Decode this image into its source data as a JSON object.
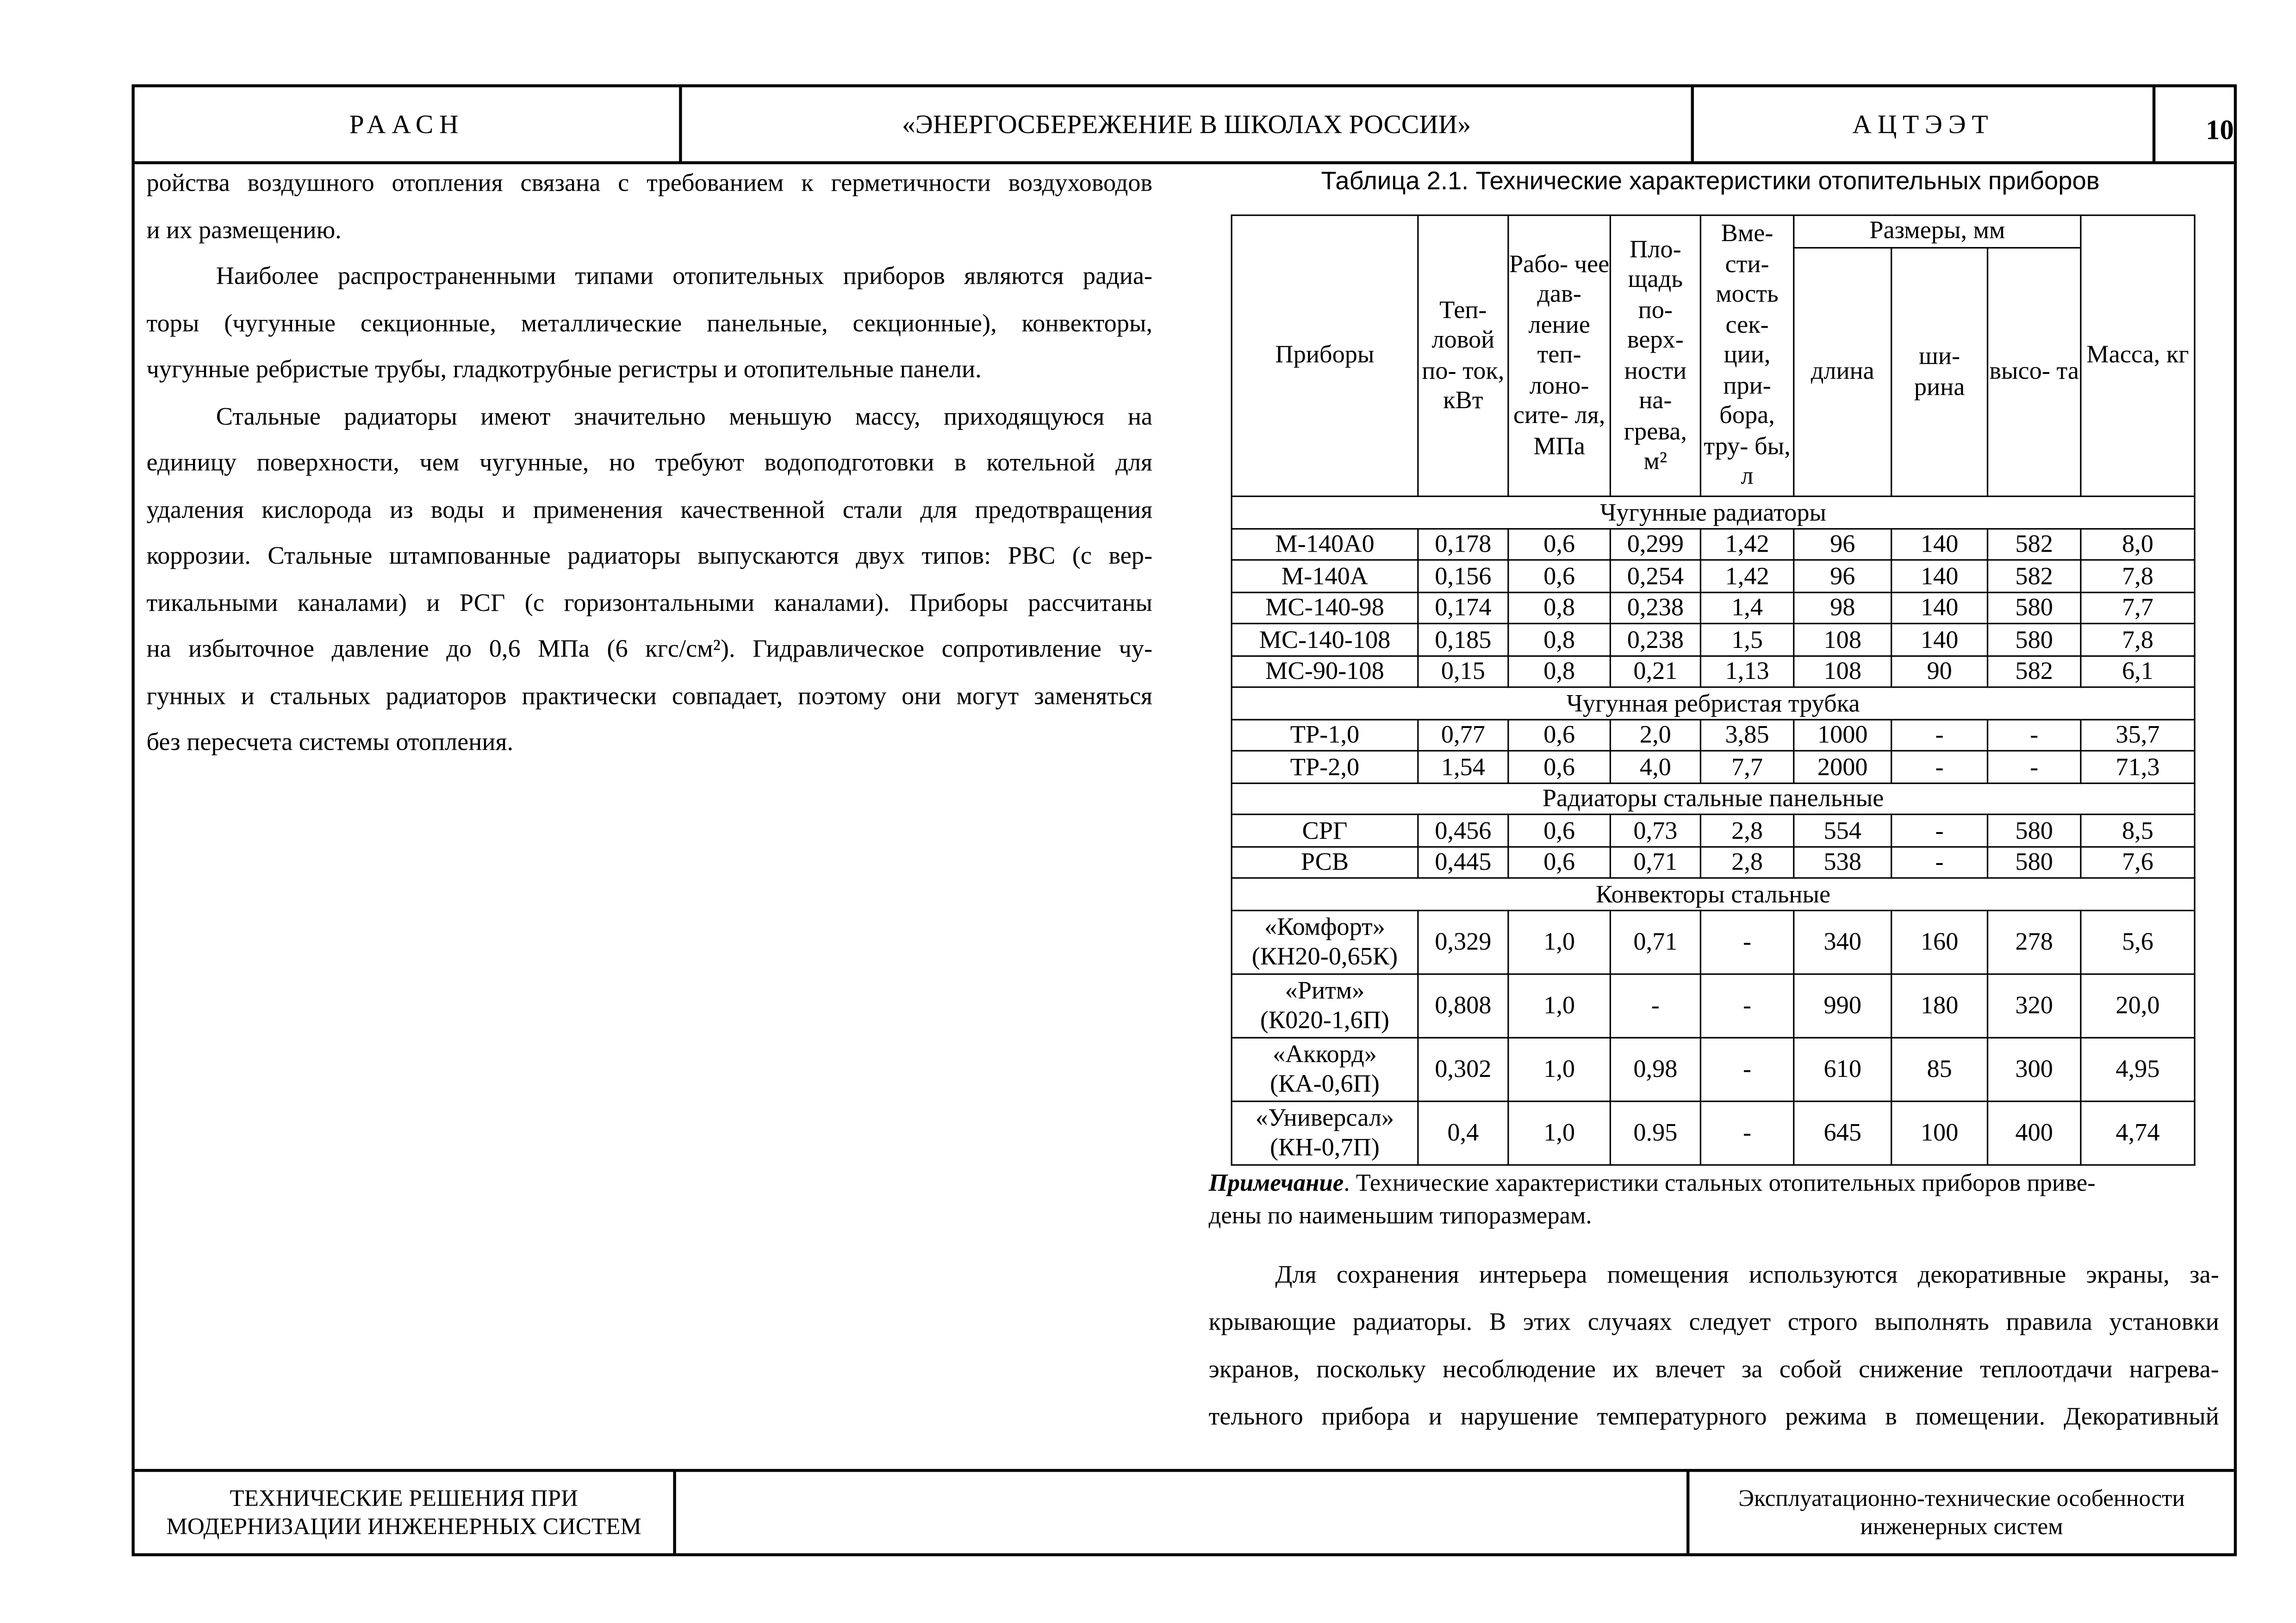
{
  "header": {
    "org": "РААСН",
    "title": "«ЭНЕРГОСБЕРЕЖЕНИЕ В ШКОЛАХ РОССИИ»",
    "center": "АЦТЭЭТ",
    "page_number": "10"
  },
  "left_text": [
    {
      "text": "ройства воздушного отопления связана с требованием к герметичности воздуховодов",
      "indent": false,
      "last": false
    },
    {
      "text": "и их размещению.",
      "indent": false,
      "last": true
    },
    {
      "text": "Наиболее распространенными типами отопительных приборов являются радиа-",
      "indent": true,
      "last": false
    },
    {
      "text": "торы (чугунные секционные, металлические панельные, секционные), конвекторы,",
      "indent": false,
      "last": false
    },
    {
      "text": "чугунные ребристые трубы, гладкотрубные регистры и отопительные панели.",
      "indent": false,
      "last": true
    },
    {
      "text": "Стальные радиаторы имеют значительно меньшую массу, приходящуюся на",
      "indent": true,
      "last": false
    },
    {
      "text": "единицу поверхности, чем чугунные, но требуют водоподготовки в котельной для",
      "indent": false,
      "last": false
    },
    {
      "text": "удаления кислорода из воды и применения качественной стали для предотвращения",
      "indent": false,
      "last": false
    },
    {
      "text": "коррозии. Стальные штампованные радиаторы выпускаются двух типов: РВС (с вер-",
      "indent": false,
      "last": false
    },
    {
      "text": "тикальными каналами) и РСГ (с горизонтальными каналами). Приборы рассчитаны",
      "indent": false,
      "last": false
    },
    {
      "text": "на избыточное давление до 0,6 МПа (6 кгс/см²). Гидравлическое сопротивление чу-",
      "indent": false,
      "last": false
    },
    {
      "text": "гунных и стальных радиаторов практически совпадает, поэтому они могут заменяться",
      "indent": false,
      "last": false
    },
    {
      "text": "без пересчета системы отопления.",
      "indent": false,
      "last": true
    }
  ],
  "table": {
    "title": "Таблица 2.1. Технические характеристики отопительных приборов",
    "headers": {
      "device": "Приборы",
      "heat": "Теп- ловой по- ток, кВт",
      "pressure": "Рабо- чее дав- ление теп- лоно- сите- ля, МПа",
      "area": "Пло- щадь по- верх- ности на- грева, м²",
      "volume": "Вме- сти- мость сек- ции, при- бора, тру- бы, л",
      "dims": "Размеры, мм",
      "length": "длина",
      "width": "ши- рина",
      "height": "высо- та",
      "mass": "Масса, кг"
    },
    "sections": [
      {
        "title": "Чугунные радиаторы",
        "tall": false,
        "rows": [
          [
            "М-140А0",
            "0,178",
            "0,6",
            "0,299",
            "1,42",
            "96",
            "140",
            "582",
            "8,0"
          ],
          [
            "М-140А",
            "0,156",
            "0,6",
            "0,254",
            "1,42",
            "96",
            "140",
            "582",
            "7,8"
          ],
          [
            "МС-140-98",
            "0,174",
            "0,8",
            "0,238",
            "1,4",
            "98",
            "140",
            "580",
            "7,7"
          ],
          [
            "МС-140-108",
            "0,185",
            "0,8",
            "0,238",
            "1,5",
            "108",
            "140",
            "580",
            "7,8"
          ],
          [
            "МС-90-108",
            "0,15",
            "0,8",
            "0,21",
            "1,13",
            "108",
            "90",
            "582",
            "6,1"
          ]
        ]
      },
      {
        "title": "Чугунная ребристая трубка",
        "tall": false,
        "rows": [
          [
            "ТР-1,0",
            "0,77",
            "0,6",
            "2,0",
            "3,85",
            "1000",
            "-",
            "-",
            "35,7"
          ],
          [
            "ТР-2,0",
            "1,54",
            "0,6",
            "4,0",
            "7,7",
            "2000",
            "-",
            "-",
            "71,3"
          ]
        ]
      },
      {
        "title": "Радиаторы стальные панельные",
        "tall": false,
        "rows": [
          [
            "СРГ",
            "0,456",
            "0,6",
            "0,73",
            "2,8",
            "554",
            "-",
            "580",
            "8,5"
          ],
          [
            "РСВ",
            "0,445",
            "0,6",
            "0,71",
            "2,8",
            "538",
            "-",
            "580",
            "7,6"
          ]
        ]
      },
      {
        "title": "Конвекторы стальные",
        "tall": true,
        "rows": [
          [
            "«Комфорт»\n(КН20-0,65К)",
            "0,329",
            "1,0",
            "0,71",
            "-",
            "340",
            "160",
            "278",
            "5,6"
          ],
          [
            "«Ритм»\n(К020-1,6П)",
            "0,808",
            "1,0",
            "-",
            "-",
            "990",
            "180",
            "320",
            "20,0"
          ],
          [
            "«Аккорд»\n(КА-0,6П)",
            "0,302",
            "1,0",
            "0,98",
            "-",
            "610",
            "85",
            "300",
            "4,95"
          ],
          [
            "«Универсал»\n(КН-0,7П)",
            "0,4",
            "1,0",
            "0.95",
            "-",
            "645",
            "100",
            "400",
            "4,74"
          ]
        ]
      }
    ]
  },
  "note": {
    "label": "Примечание",
    "text": ". Технические характеристики стальных отопительных приборов приве-",
    "line2": "дены по наименьшим типоразмерам."
  },
  "right_text": [
    {
      "text": "Для сохранения интерьера помещения используются декоративные экраны, за-",
      "indent": true
    },
    {
      "text": "крывающие радиаторы. В этих случаях следует строго выполнять правила установки",
      "indent": false
    },
    {
      "text": "экранов, поскольку несоблюдение их влечет за собой снижение теплоотдачи нагрева-",
      "indent": false
    },
    {
      "text": "тельного прибора и нарушение температурного режима в помещении. Декоративный",
      "indent": false
    }
  ],
  "footer": {
    "left": "ТЕХНИЧЕСКИЕ РЕШЕНИЯ ПРИ МОДЕРНИЗАЦИИ ИНЖЕНЕРНЫХ СИСТЕМ",
    "middle": "",
    "right": "Эксплуатационно-технические особенности инженерных систем"
  }
}
